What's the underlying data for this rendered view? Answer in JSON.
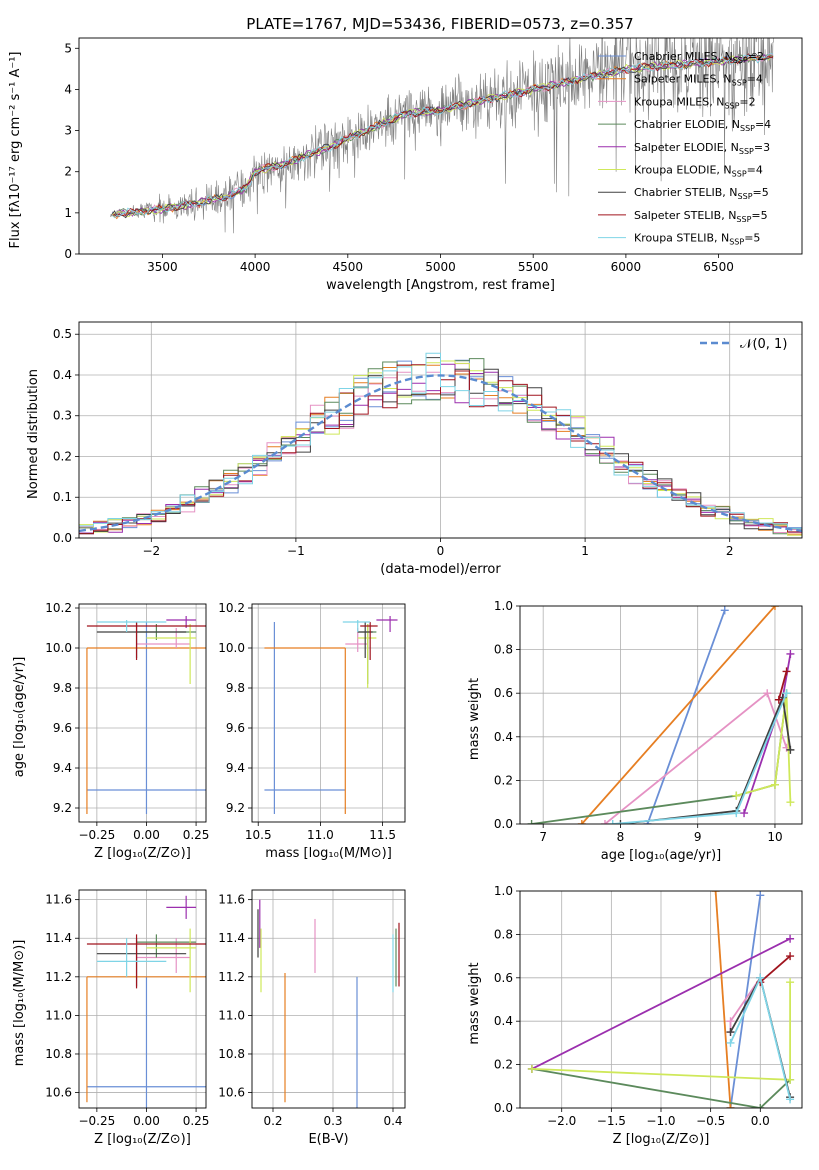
{
  "title": "PLATE=1767, MJD=53436, FIBERID=0573, z=0.357",
  "colors": {
    "models": [
      "#6a8fd6",
      "#e67e22",
      "#e592c4",
      "#5c8a5c",
      "#9b2fae",
      "#cfe85a",
      "#404040",
      "#a0141e",
      "#7fd4e6"
    ],
    "data": "#7f7f7f"
  },
  "legend_models": [
    {
      "prefix": "Chabrier MILES, N",
      "sub": "SSP",
      "suffix": "=2"
    },
    {
      "prefix": "Salpeter MILES, N",
      "sub": "SSP",
      "suffix": "=4"
    },
    {
      "prefix": "Kroupa MILES, N",
      "sub": "SSP",
      "suffix": "=2"
    },
    {
      "prefix": "Chabrier ELODIE, N",
      "sub": "SSP",
      "suffix": "=4"
    },
    {
      "prefix": "Salpeter ELODIE, N",
      "sub": "SSP",
      "suffix": "=3"
    },
    {
      "prefix": "Kroupa ELODIE, N",
      "sub": "SSP",
      "suffix": "=4"
    },
    {
      "prefix": "Chabrier STELIB, N",
      "sub": "SSP",
      "suffix": "=5"
    },
    {
      "prefix": "Salpeter STELIB, N",
      "sub": "SSP",
      "suffix": "=5"
    },
    {
      "prefix": "Kroupa STELIB, N",
      "sub": "SSP",
      "suffix": "=5"
    }
  ],
  "chart_data": [
    {
      "type": "line",
      "name": "spectrum",
      "xlabel": "wavelength [Angstrom, rest frame]",
      "ylabel": "Flux [fλ10⁻¹⁷ erg cm⁻² s⁻¹ A⁻¹]",
      "xlim": [
        3050,
        6950
      ],
      "ylim": [
        0,
        5.25
      ],
      "xticks": [
        3500,
        4000,
        4500,
        5000,
        5500,
        6000,
        6500
      ],
      "yticks": [
        0,
        1,
        2,
        3,
        4,
        5
      ],
      "continuum": [
        [
          3220,
          0.95
        ],
        [
          3500,
          1.1
        ],
        [
          3700,
          1.25
        ],
        [
          3850,
          1.4
        ],
        [
          3950,
          1.6
        ],
        [
          4000,
          2.0
        ],
        [
          4200,
          2.25
        ],
        [
          4400,
          2.6
        ],
        [
          4600,
          3.0
        ],
        [
          4800,
          3.4
        ],
        [
          5000,
          3.5
        ],
        [
          5200,
          3.7
        ],
        [
          5400,
          3.9
        ],
        [
          5600,
          4.1
        ],
        [
          5800,
          4.3
        ],
        [
          6000,
          4.5
        ],
        [
          6300,
          4.6
        ],
        [
          6800,
          4.8
        ]
      ],
      "data_range": [
        3220,
        6800
      ],
      "noise_breaks": [
        [
          3220,
          0.05
        ],
        [
          3500,
          0.3
        ],
        [
          4000,
          0.45
        ],
        [
          4500,
          0.5
        ],
        [
          5200,
          0.7
        ],
        [
          5800,
          1.0
        ],
        [
          6800,
          1.1
        ]
      ]
    },
    {
      "type": "line",
      "name": "residual-histogram",
      "xlabel": "(data-model)/error",
      "ylabel": "Normed distribution",
      "xlim": [
        -2.5,
        2.5
      ],
      "ylim": [
        0,
        0.53
      ],
      "xticks": [
        -2,
        -1,
        0,
        1,
        2
      ],
      "yticks": [
        0.0,
        0.1,
        0.2,
        0.3,
        0.4,
        0.5
      ],
      "bin_width": 0.1,
      "legend": "𝒩(0, 1)"
    },
    {
      "type": "scatter",
      "name": "age-vs-Z",
      "xlabel": "Z [log₁₀(Z/Z⊙)]",
      "ylabel": "age  [log₁₀(age/yr)]",
      "xlim": [
        -0.34,
        0.3
      ],
      "ylim": [
        9.13,
        10.22
      ],
      "xticks": [
        -0.25,
        0.0,
        0.25
      ],
      "yticks": [
        9.2,
        9.4,
        9.6,
        9.8,
        10.0,
        10.2
      ],
      "points": [
        {
          "x": 0.0,
          "y": 9.29,
          "xe": [
            -0.3,
            0.3
          ],
          "ye": [
            9.17,
            10.13
          ],
          "c": 0
        },
        {
          "x": -0.3,
          "y": 10.0,
          "xe": [
            -0.3,
            0.3
          ],
          "ye": [
            9.17,
            10.0
          ],
          "c": 1
        },
        {
          "x": 0.15,
          "y": 10.02,
          "xe": [
            -0.05,
            0.22
          ],
          "ye": [
            10.0,
            10.1
          ],
          "c": 2
        },
        {
          "x": 0.05,
          "y": 10.08,
          "xe": [
            -0.05,
            0.25
          ],
          "ye": [
            10.04,
            10.12
          ],
          "c": 3
        },
        {
          "x": 0.2,
          "y": 10.14,
          "xe": [
            0.1,
            0.25
          ],
          "ye": [
            10.1,
            10.16
          ],
          "c": 4
        },
        {
          "x": 0.22,
          "y": 10.05,
          "xe": [
            0.0,
            0.25
          ],
          "ye": [
            9.82,
            10.12
          ],
          "c": 5
        },
        {
          "x": -0.05,
          "y": 10.08,
          "xe": [
            -0.25,
            0.2
          ],
          "ye": [
            9.95,
            10.13
          ],
          "c": 6
        },
        {
          "x": -0.05,
          "y": 10.11,
          "xe": [
            -0.3,
            0.3
          ],
          "ye": [
            9.94,
            10.13
          ],
          "c": 7
        },
        {
          "x": -0.1,
          "y": 10.13,
          "xe": [
            -0.25,
            0.1
          ],
          "ye": [
            10.08,
            10.14
          ],
          "c": 8
        }
      ]
    },
    {
      "type": "scatter",
      "name": "age-vs-mass",
      "xlabel": "mass [log₁₀(M/M⊙)]",
      "ylabel": "",
      "xlim": [
        10.45,
        11.68
      ],
      "ylim": [
        9.13,
        10.22
      ],
      "xticks": [
        10.5,
        11.0,
        11.5
      ],
      "yticks": [
        9.2,
        9.4,
        9.6,
        9.8,
        10.0,
        10.2
      ],
      "points": [
        {
          "x": 10.63,
          "y": 9.29,
          "xe": [
            10.55,
            11.2
          ],
          "ye": [
            9.17,
            10.13
          ],
          "c": 0
        },
        {
          "x": 11.2,
          "y": 10.0,
          "xe": [
            10.55,
            11.2
          ],
          "ye": [
            9.17,
            10.0
          ],
          "c": 1
        },
        {
          "x": 11.3,
          "y": 10.02,
          "xe": [
            11.2,
            11.38
          ],
          "ye": [
            9.98,
            10.1
          ],
          "c": 2
        },
        {
          "x": 11.38,
          "y": 10.08,
          "xe": [
            11.3,
            11.45
          ],
          "ye": [
            9.82,
            10.12
          ],
          "c": 3
        },
        {
          "x": 11.56,
          "y": 10.14,
          "xe": [
            11.45,
            11.62
          ],
          "ye": [
            10.08,
            10.16
          ],
          "c": 4
        },
        {
          "x": 11.38,
          "y": 10.05,
          "xe": [
            11.3,
            11.45
          ],
          "ye": [
            9.8,
            10.12
          ],
          "c": 5
        },
        {
          "x": 11.36,
          "y": 10.08,
          "xe": [
            11.3,
            11.42
          ],
          "ye": [
            9.95,
            10.13
          ],
          "c": 6
        },
        {
          "x": 11.4,
          "y": 10.11,
          "xe": [
            11.32,
            11.46
          ],
          "ye": [
            9.94,
            10.13
          ],
          "c": 7
        },
        {
          "x": 11.3,
          "y": 10.13,
          "xe": [
            11.18,
            11.4
          ],
          "ye": [
            10.08,
            10.14
          ],
          "c": 8
        }
      ]
    },
    {
      "type": "line",
      "name": "mass-weight-vs-age",
      "xlabel": "age  [log₁₀(age/yr)]",
      "ylabel": "mass weight",
      "xlim": [
        6.7,
        10.35
      ],
      "ylim": [
        0,
        1
      ],
      "xticks": [
        7,
        8,
        9,
        10
      ],
      "yticks": [
        0.0,
        0.2,
        0.4,
        0.6,
        0.8,
        1.0
      ],
      "series": [
        {
          "c": 0,
          "pts": [
            [
              8.35,
              0.0
            ],
            [
              9.35,
              0.98
            ]
          ]
        },
        {
          "c": 1,
          "pts": [
            [
              7.5,
              0.0
            ],
            [
              10.0,
              1.0
            ]
          ]
        },
        {
          "c": 2,
          "pts": [
            [
              7.8,
              0.0
            ],
            [
              9.9,
              0.6
            ],
            [
              10.15,
              0.35
            ]
          ]
        },
        {
          "c": 3,
          "pts": [
            [
              6.85,
              0.0
            ],
            [
              9.5,
              0.13
            ],
            [
              10.0,
              0.18
            ],
            [
              10.15,
              0.6
            ]
          ]
        },
        {
          "c": 4,
          "pts": [
            [
              9.6,
              0.05
            ],
            [
              10.1,
              0.58
            ],
            [
              10.2,
              0.78
            ]
          ]
        },
        {
          "c": 5,
          "pts": [
            [
              9.5,
              0.13
            ],
            [
              10.0,
              0.18
            ],
            [
              10.15,
              0.6
            ],
            [
              10.2,
              0.1
            ]
          ]
        },
        {
          "c": 6,
          "pts": [
            [
              8.0,
              0.0
            ],
            [
              9.5,
              0.06
            ],
            [
              10.1,
              0.58
            ],
            [
              10.2,
              0.34
            ]
          ]
        },
        {
          "c": 7,
          "pts": [
            [
              10.05,
              0.57
            ],
            [
              10.15,
              0.7
            ]
          ]
        },
        {
          "c": 8,
          "pts": [
            [
              7.9,
              0.0
            ],
            [
              9.5,
              0.05
            ],
            [
              10.15,
              0.6
            ]
          ]
        }
      ]
    },
    {
      "type": "scatter",
      "name": "mass-vs-Z",
      "xlabel": "Z [log₁₀(Z/Z⊙)]",
      "ylabel": "mass [log₁₀(M/M⊙)]",
      "xlim": [
        -0.34,
        0.3
      ],
      "ylim": [
        10.52,
        11.65
      ],
      "xticks": [
        -0.25,
        0.0,
        0.25
      ],
      "yticks": [
        10.6,
        10.8,
        11.0,
        11.2,
        11.4,
        11.6
      ],
      "points": [
        {
          "x": 0.0,
          "y": 10.63,
          "xe": [
            -0.3,
            0.3
          ],
          "ye": [
            10.52,
            11.2
          ],
          "c": 0
        },
        {
          "x": -0.3,
          "y": 11.2,
          "xe": [
            -0.3,
            0.3
          ],
          "ye": [
            10.55,
            11.2
          ],
          "c": 1
        },
        {
          "x": 0.15,
          "y": 11.3,
          "xe": [
            -0.05,
            0.22
          ],
          "ye": [
            11.22,
            11.4
          ],
          "c": 2
        },
        {
          "x": 0.05,
          "y": 11.38,
          "xe": [
            -0.05,
            0.25
          ],
          "ye": [
            11.3,
            11.42
          ],
          "c": 3
        },
        {
          "x": 0.2,
          "y": 11.56,
          "xe": [
            0.1,
            0.25
          ],
          "ye": [
            11.5,
            11.62
          ],
          "c": 4
        },
        {
          "x": 0.22,
          "y": 11.35,
          "xe": [
            0.0,
            0.25
          ],
          "ye": [
            11.12,
            11.45
          ],
          "c": 5
        },
        {
          "x": -0.05,
          "y": 11.32,
          "xe": [
            -0.25,
            0.2
          ],
          "ye": [
            11.15,
            11.4
          ],
          "c": 6
        },
        {
          "x": -0.05,
          "y": 11.37,
          "xe": [
            -0.3,
            0.3
          ],
          "ye": [
            11.14,
            11.42
          ],
          "c": 7
        },
        {
          "x": -0.1,
          "y": 11.28,
          "xe": [
            -0.25,
            0.1
          ],
          "ye": [
            11.2,
            11.4
          ],
          "c": 8
        }
      ]
    },
    {
      "type": "scatter",
      "name": "mass-vs-EBV",
      "xlabel": "E(B-V)",
      "ylabel": "",
      "xlim": [
        0.165,
        0.42
      ],
      "ylim": [
        10.52,
        11.65
      ],
      "xticks": [
        0.2,
        0.3,
        0.4
      ],
      "yticks": [
        10.6,
        10.8,
        11.0,
        11.2,
        11.4,
        11.6
      ],
      "points": [
        {
          "x": 0.34,
          "ye": [
            10.52,
            11.2
          ],
          "c": 0
        },
        {
          "x": 0.22,
          "ye": [
            10.55,
            11.22
          ],
          "c": 1
        },
        {
          "x": 0.27,
          "ye": [
            11.22,
            11.5
          ],
          "c": 2
        },
        {
          "x": 0.405,
          "ye": [
            11.15,
            11.45
          ],
          "c": 3
        },
        {
          "x": 0.178,
          "ye": [
            11.35,
            11.6
          ],
          "c": 4
        },
        {
          "x": 0.18,
          "ye": [
            11.12,
            11.45
          ],
          "c": 5
        },
        {
          "x": 0.175,
          "ye": [
            11.3,
            11.55
          ],
          "c": 6
        },
        {
          "x": 0.41,
          "ye": [
            11.15,
            11.48
          ],
          "c": 7
        },
        {
          "x": 0.4,
          "ye": [
            11.12,
            11.42
          ],
          "c": 8
        }
      ]
    },
    {
      "type": "line",
      "name": "mass-weight-vs-Z",
      "xlabel": "Z [log₁₀(Z/Z⊙)]",
      "ylabel": "mass weight",
      "xlim": [
        -2.42,
        0.42
      ],
      "ylim": [
        0,
        1
      ],
      "xticks": [
        -2.0,
        -1.5,
        -1.0,
        -0.5,
        0.0
      ],
      "yticks": [
        0.0,
        0.2,
        0.4,
        0.6,
        0.8,
        1.0
      ],
      "series": [
        {
          "c": 0,
          "pts": [
            [
              -0.3,
              0.0
            ],
            [
              0.0,
              0.98
            ]
          ]
        },
        {
          "c": 1,
          "pts": [
            [
              -0.45,
              1.0
            ],
            [
              -0.3,
              0.0
            ]
          ]
        },
        {
          "c": 2,
          "pts": [
            [
              -0.3,
              0.35
            ],
            [
              -0.3,
              0.4
            ],
            [
              0.0,
              0.6
            ]
          ]
        },
        {
          "c": 3,
          "pts": [
            [
              -2.3,
              0.18
            ],
            [
              0.0,
              0.0
            ],
            [
              0.3,
              0.13
            ]
          ]
        },
        {
          "c": 4,
          "pts": [
            [
              -2.3,
              0.18
            ],
            [
              0.3,
              0.78
            ]
          ]
        },
        {
          "c": 5,
          "pts": [
            [
              -2.3,
              0.18
            ],
            [
              0.3,
              0.13
            ],
            [
              0.3,
              0.58
            ]
          ]
        },
        {
          "c": 6,
          "pts": [
            [
              -0.3,
              0.35
            ],
            [
              0.0,
              0.6
            ],
            [
              0.3,
              0.05
            ]
          ]
        },
        {
          "c": 7,
          "pts": [
            [
              0.0,
              0.58
            ],
            [
              0.3,
              0.7
            ]
          ]
        },
        {
          "c": 8,
          "pts": [
            [
              -0.3,
              0.3
            ],
            [
              0.0,
              0.6
            ],
            [
              0.3,
              0.04
            ]
          ]
        }
      ]
    }
  ]
}
